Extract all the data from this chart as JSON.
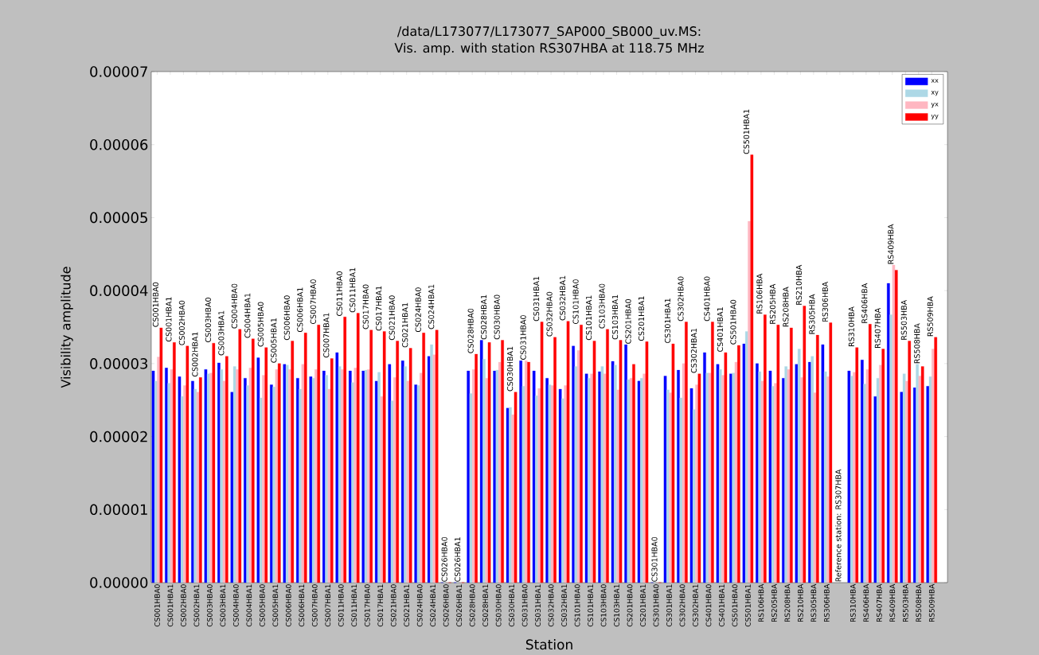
{
  "chart_data": {
    "type": "bar",
    "title": "/data/L173077/L173077_SAP000_SB000_uv.MS:",
    "subtitle": "Vis. amp. with station RS307HBA at 118.75 MHz",
    "xlabel": "Station",
    "ylabel": "Visibility amplitude",
    "categories": [
      "CS001HBA0",
      "CS001HBA1",
      "CS002HBA0",
      "CS002HBA1",
      "CS003HBA0",
      "CS003HBA1",
      "CS004HBA0",
      "CS004HBA1",
      "CS005HBA0",
      "CS005HBA1",
      "CS006HBA0",
      "CS006HBA1",
      "CS007HBA0",
      "CS007HBA1",
      "CS011HBA0",
      "CS011HBA1",
      "CS017HBA0",
      "CS017HBA1",
      "CS021HBA0",
      "CS021HBA1",
      "CS024HBA0",
      "CS024HBA1",
      "CS026HBA0",
      "CS026HBA1",
      "CS028HBA0",
      "CS028HBA1",
      "CS030HBA0",
      "CS030HBA1",
      "CS031HBA0",
      "CS031HBA1",
      "CS032HBA0",
      "CS032HBA1",
      "CS101HBA0",
      "CS101HBA1",
      "CS103HBA0",
      "CS103HBA1",
      "CS201HBA0",
      "CS201HBA1",
      "CS301HBA0",
      "CS301HBA1",
      "CS302HBA0",
      "CS302HBA1",
      "CS401HBA0",
      "CS401HBA1",
      "CS501HBA0",
      "CS501HBA1",
      "RS106HBA",
      "RS205HBA",
      "RS208HBA",
      "RS210HBA",
      "RS305HBA",
      "RS306HBA",
      null,
      "RS310HBA",
      "RS406HBA",
      "RS407HBA",
      "RS409HBA",
      "RS503HBA",
      "RS508HBA",
      "RS509HBA"
    ],
    "series": [
      {
        "name": "xx",
        "color": "#0000ff",
        "values": [
          2.9e-05,
          2.94e-05,
          2.82e-05,
          2.76e-05,
          2.92e-05,
          3.01e-05,
          2.61e-05,
          2.8e-05,
          3.08e-05,
          2.71e-05,
          2.99e-05,
          2.8e-05,
          2.82e-05,
          2.9e-05,
          3.15e-05,
          2.9e-05,
          2.9e-05,
          2.76e-05,
          2.99e-05,
          3.04e-05,
          2.71e-05,
          3.1e-05,
          0,
          0,
          2.9e-05,
          3.32e-05,
          2.9e-05,
          2.39e-05,
          3.04e-05,
          2.9e-05,
          2.8e-05,
          2.65e-05,
          3.24e-05,
          2.86e-05,
          2.89e-05,
          3.03e-05,
          3.26e-05,
          2.76e-05,
          0,
          2.83e-05,
          2.91e-05,
          2.66e-05,
          3.15e-05,
          2.99e-05,
          2.86e-05,
          3.27e-05,
          3e-05,
          2.9e-05,
          2.8e-05,
          2.99e-05,
          3.02e-05,
          3.26e-05,
          null,
          2.9e-05,
          3.05e-05,
          2.55e-05,
          4.1e-05,
          2.61e-05,
          2.67e-05,
          2.69e-05
        ]
      },
      {
        "name": "xy",
        "color": "#add8e6",
        "values": [
          2.76e-05,
          2.73e-05,
          2.55e-05,
          2.65e-05,
          2.86e-05,
          2.92e-05,
          2.96e-05,
          2.7e-05,
          2.53e-05,
          2.68e-05,
          2.98e-05,
          2.65e-05,
          2.8e-05,
          2.84e-05,
          2.96e-05,
          2.74e-05,
          2.91e-05,
          2.88e-05,
          2.49e-05,
          2.96e-05,
          2.7e-05,
          3.26e-05,
          0,
          0,
          2.59e-05,
          3.06e-05,
          2.91e-05,
          2.4e-05,
          2.69e-05,
          2.56e-05,
          2.71e-05,
          2.52e-05,
          2.96e-05,
          2.8e-05,
          2.96e-05,
          2.98e-05,
          2.78e-05,
          2.8e-05,
          0,
          2.64e-05,
          2.53e-05,
          2.37e-05,
          2.87e-05,
          2.92e-05,
          2.87e-05,
          3.44e-05,
          2.89e-05,
          2.69e-05,
          2.96e-05,
          3.2e-05,
          3.1e-05,
          2.89e-05,
          null,
          2.83e-05,
          2.72e-05,
          2.8e-05,
          3.67e-05,
          2.86e-05,
          2.99e-05,
          2.82e-05
        ]
      },
      {
        "name": "yx",
        "color": "#ffb6c1",
        "values": [
          3.09e-05,
          2.92e-05,
          2.7e-05,
          2.61e-05,
          2.87e-05,
          2.76e-05,
          2.92e-05,
          2.94e-05,
          2.84e-05,
          2.92e-05,
          2.92e-05,
          2.99e-05,
          2.92e-05,
          2.65e-05,
          2.92e-05,
          2.94e-05,
          2.92e-05,
          2.55e-05,
          2.81e-05,
          2.76e-05,
          2.87e-05,
          3.12e-05,
          0,
          0,
          2.92e-05,
          2.8e-05,
          3.02e-05,
          2.3e-05,
          3.04e-05,
          2.66e-05,
          2.7e-05,
          2.7e-05,
          3.18e-05,
          2.86e-05,
          2.86e-05,
          2.64e-05,
          2.8e-05,
          2.86e-05,
          0,
          2.6e-05,
          3e-05,
          2.71e-05,
          2.87e-05,
          2.84e-05,
          3.02e-05,
          4.95e-05,
          2.76e-05,
          2.73e-05,
          2.92e-05,
          2.81e-05,
          2.6e-05,
          2.82e-05,
          null,
          2.88e-05,
          2.92e-05,
          2.98e-05,
          4.35e-05,
          2.76e-05,
          2.83e-05,
          3.2e-05
        ]
      },
      {
        "name": "yy",
        "color": "#ff0000",
        "values": [
          3.49e-05,
          3.29e-05,
          3.24e-05,
          2.81e-05,
          3.28e-05,
          3.1e-05,
          3.47e-05,
          3.34e-05,
          3.22e-05,
          3e-05,
          3.31e-05,
          3.42e-05,
          3.53e-05,
          3.07e-05,
          3.64e-05,
          3.69e-05,
          3.46e-05,
          3.44e-05,
          3.31e-05,
          3.21e-05,
          3.42e-05,
          3.46e-05,
          0,
          0,
          3.13e-05,
          3.29e-05,
          3.32e-05,
          2.61e-05,
          3.02e-05,
          3.57e-05,
          3.36e-05,
          3.58e-05,
          3.53e-05,
          3.31e-05,
          3.47e-05,
          3.32e-05,
          2.99e-05,
          3.3e-05,
          0,
          3.27e-05,
          3.57e-05,
          2.86e-05,
          3.57e-05,
          3.15e-05,
          3.25e-05,
          5.86e-05,
          3.67e-05,
          3.53e-05,
          3.49e-05,
          3.79e-05,
          3.39e-05,
          3.56e-05,
          null,
          3.22e-05,
          3.54e-05,
          3.2e-05,
          4.28e-05,
          3.31e-05,
          2.96e-05,
          3.36e-05
        ]
      }
    ],
    "ylim": [
      0,
      7e-05
    ],
    "yticks": [
      {
        "value": 0,
        "label": "0.00000"
      },
      {
        "value": 1e-05,
        "label": "0.00001"
      },
      {
        "value": 2e-05,
        "label": "0.00002"
      },
      {
        "value": 3e-05,
        "label": "0.00003"
      },
      {
        "value": 4e-05,
        "label": "0.00004"
      },
      {
        "value": 5e-05,
        "label": "0.00005"
      },
      {
        "value": 6e-05,
        "label": "0.00006"
      },
      {
        "value": 7e-05,
        "label": "0.00007"
      }
    ],
    "legend": "top right",
    "annotations": [
      {
        "text": "CS001HBA0",
        "x": "CS001HBA0",
        "y": 3.49e-05
      },
      {
        "text": "CS001HBA1",
        "x": "CS001HBA1",
        "y": 3.29e-05
      },
      {
        "text": "CS002HBA0",
        "x": "CS002HBA0",
        "y": 3.24e-05
      },
      {
        "text": "CS002HBA1",
        "x": "CS002HBA1",
        "y": 2.81e-05
      },
      {
        "text": "CS003HBA0",
        "x": "CS003HBA0",
        "y": 3.28e-05
      },
      {
        "text": "CS003HBA1",
        "x": "CS003HBA1",
        "y": 3.1e-05
      },
      {
        "text": "CS004HBA0",
        "x": "CS004HBA0",
        "y": 3.47e-05
      },
      {
        "text": "CS004HBA1",
        "x": "CS004HBA1",
        "y": 3.34e-05
      },
      {
        "text": "CS005HBA0",
        "x": "CS005HBA0",
        "y": 3.22e-05
      },
      {
        "text": "CS005HBA1",
        "x": "CS005HBA1",
        "y": 3e-05
      },
      {
        "text": "CS006HBA0",
        "x": "CS006HBA0",
        "y": 3.31e-05
      },
      {
        "text": "CS006HBA1",
        "x": "CS006HBA1",
        "y": 3.42e-05
      },
      {
        "text": "CS007HBA0",
        "x": "CS007HBA0",
        "y": 3.53e-05
      },
      {
        "text": "CS007HBA1",
        "x": "CS007HBA1",
        "y": 3.07e-05
      },
      {
        "text": "CS011HBA0",
        "x": "CS011HBA0",
        "y": 3.64e-05
      },
      {
        "text": "CS011HBA1",
        "x": "CS011HBA1",
        "y": 3.69e-05
      },
      {
        "text": "CS017HBA0",
        "x": "CS017HBA0",
        "y": 3.46e-05
      },
      {
        "text": "CS017HBA1",
        "x": "CS017HBA1",
        "y": 3.44e-05
      },
      {
        "text": "CS021HBA0",
        "x": "CS021HBA0",
        "y": 3.31e-05
      },
      {
        "text": "CS021HBA1",
        "x": "CS021HBA1",
        "y": 3.21e-05
      },
      {
        "text": "CS024HBA0",
        "x": "CS024HBA0",
        "y": 3.42e-05
      },
      {
        "text": "CS024HBA1",
        "x": "CS024HBA1",
        "y": 3.46e-05
      },
      {
        "text": "CS026HBA0",
        "x": "CS026HBA0",
        "y": 0
      },
      {
        "text": "CS026HBA1",
        "x": "CS026HBA1",
        "y": 0
      },
      {
        "text": "CS028HBA0",
        "x": "CS028HBA0",
        "y": 3.13e-05
      },
      {
        "text": "CS028HBA1",
        "x": "CS028HBA1",
        "y": 3.32e-05
      },
      {
        "text": "CS030HBA0",
        "x": "CS030HBA0",
        "y": 3.32e-05
      },
      {
        "text": "CS030HBA1",
        "x": "CS030HBA1",
        "y": 2.61e-05
      },
      {
        "text": "CS031HBA0",
        "x": "CS031HBA0",
        "y": 3.04e-05
      },
      {
        "text": "CS031HBA1",
        "x": "CS031HBA1",
        "y": 3.57e-05
      },
      {
        "text": "CS032HBA0",
        "x": "CS032HBA0",
        "y": 3.36e-05
      },
      {
        "text": "CS032HBA1",
        "x": "CS032HBA1",
        "y": 3.58e-05
      },
      {
        "text": "CS101HBA0",
        "x": "CS101HBA0",
        "y": 3.53e-05
      },
      {
        "text": "CS101HBA1",
        "x": "CS101HBA1",
        "y": 3.31e-05
      },
      {
        "text": "CS103HBA0",
        "x": "CS103HBA0",
        "y": 3.47e-05
      },
      {
        "text": "CS103HBA1",
        "x": "CS103HBA1",
        "y": 3.32e-05
      },
      {
        "text": "CS201HBA0",
        "x": "CS201HBA0",
        "y": 3.26e-05
      },
      {
        "text": "CS201HBA1",
        "x": "CS201HBA1",
        "y": 3.3e-05
      },
      {
        "text": "CS301HBA0",
        "x": "CS301HBA0",
        "y": 0
      },
      {
        "text": "CS301HBA1",
        "x": "CS301HBA1",
        "y": 3.27e-05
      },
      {
        "text": "CS302HBA0",
        "x": "CS302HBA0",
        "y": 3.57e-05
      },
      {
        "text": "CS302HBA1",
        "x": "CS302HBA1",
        "y": 2.86e-05
      },
      {
        "text": "CS401HBA0",
        "x": "CS401HBA0",
        "y": 3.57e-05
      },
      {
        "text": "CS401HBA1",
        "x": "CS401HBA1",
        "y": 3.15e-05
      },
      {
        "text": "CS501HBA0",
        "x": "CS501HBA0",
        "y": 3.25e-05
      },
      {
        "text": "CS501HBA1",
        "x": "CS501HBA1",
        "y": 5.86e-05
      },
      {
        "text": "RS106HBA",
        "x": "RS106HBA",
        "y": 3.67e-05
      },
      {
        "text": "RS205HBA",
        "x": "RS205HBA",
        "y": 3.53e-05
      },
      {
        "text": "RS208HBA",
        "x": "RS208HBA",
        "y": 3.49e-05
      },
      {
        "text": "RS210HBA",
        "x": "RS210HBA",
        "y": 3.79e-05
      },
      {
        "text": "RS305HBA",
        "x": "RS305HBA",
        "y": 3.39e-05
      },
      {
        "text": "RS306HBA",
        "x": "RS306HBA",
        "y": 3.56e-05
      },
      "Reference station: RS307HBA",
      {
        "text": "RS310HBA",
        "x": "RS310HBA",
        "y": 3.22e-05
      },
      {
        "text": "RS406HBA",
        "x": "RS406HBA",
        "y": 3.54e-05
      },
      {
        "text": "RS407HBA",
        "x": "RS407HBA",
        "y": 3.2e-05
      },
      {
        "text": "RS409HBA",
        "x": "RS409HBA",
        "y": 4.35e-05
      },
      {
        "text": "RS503HBA",
        "x": "RS503HBA",
        "y": 3.31e-05
      },
      {
        "text": "RS508HBA",
        "x": "RS508HBA",
        "y": 2.99e-05
      },
      {
        "text": "RS509HBA",
        "x": "RS509HBA",
        "y": 3.36e-05
      }
    ]
  }
}
